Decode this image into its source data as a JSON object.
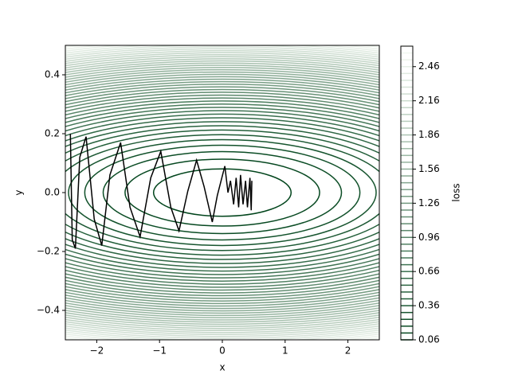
{
  "chart_data": {
    "type": "contour",
    "x_label": "x",
    "y_label": "y",
    "colorbar_label": "loss",
    "xlim": [
      -2.5,
      2.5
    ],
    "ylim": [
      -0.5,
      0.5
    ],
    "xticks": [
      {
        "value": -2,
        "label": "−2"
      },
      {
        "value": -1,
        "label": "−1"
      },
      0,
      1,
      2
    ],
    "yticks": [
      {
        "value": -0.4,
        "label": "−0.4"
      },
      {
        "value": -0.2,
        "label": "−0.2"
      },
      {
        "value": 0,
        "label": "0.0"
      },
      0.2,
      0.4
    ],
    "colormap": [
      "#00441b",
      "#f7fcf5"
    ],
    "clim": [
      0.06,
      2.64
    ],
    "cticks": [
      0.06,
      0.36,
      0.66,
      0.96,
      1.26,
      1.56,
      1.86,
      2.16,
      2.46
    ],
    "levels": [
      0.06,
      0.12,
      0.18,
      0.24,
      0.3,
      0.36,
      0.42,
      0.48,
      0.54,
      0.6,
      0.66,
      0.72,
      0.78,
      0.84,
      0.9,
      0.96,
      1.02,
      1.08,
      1.14,
      1.2,
      1.26,
      1.32,
      1.38,
      1.44,
      1.5,
      1.56,
      1.62,
      1.68,
      1.74,
      1.8,
      1.86,
      1.92,
      1.98,
      2.04,
      2.1,
      2.16,
      2.22,
      2.28,
      2.34,
      2.4,
      2.46,
      2.52,
      2.58,
      2.64
    ],
    "trajectory": {
      "color": "#000000",
      "x": [
        -2.42,
        -2.39,
        -2.34,
        -2.27,
        -2.17,
        -2.04,
        -1.92,
        -1.79,
        -1.62,
        -1.47,
        -1.31,
        -1.14,
        -0.98,
        -0.82,
        -0.69,
        -0.55,
        -0.41,
        -0.29,
        -0.16,
        -0.08,
        0.04,
        0.09,
        0.13,
        0.18,
        0.22,
        0.26,
        0.29,
        0.33,
        0.37,
        0.4,
        0.44,
        0.46,
        0.47
      ],
      "y": [
        0.2,
        -0.16,
        -0.19,
        0.12,
        0.19,
        -0.09,
        -0.18,
        0.06,
        0.17,
        -0.05,
        -0.15,
        0.05,
        0.14,
        -0.05,
        -0.13,
        0.005,
        0.11,
        0.02,
        -0.1,
        -0.01,
        0.09,
        0.0,
        0.04,
        -0.04,
        0.05,
        -0.05,
        0.06,
        -0.04,
        0.04,
        -0.05,
        0.05,
        -0.06,
        0.04
      ]
    }
  }
}
